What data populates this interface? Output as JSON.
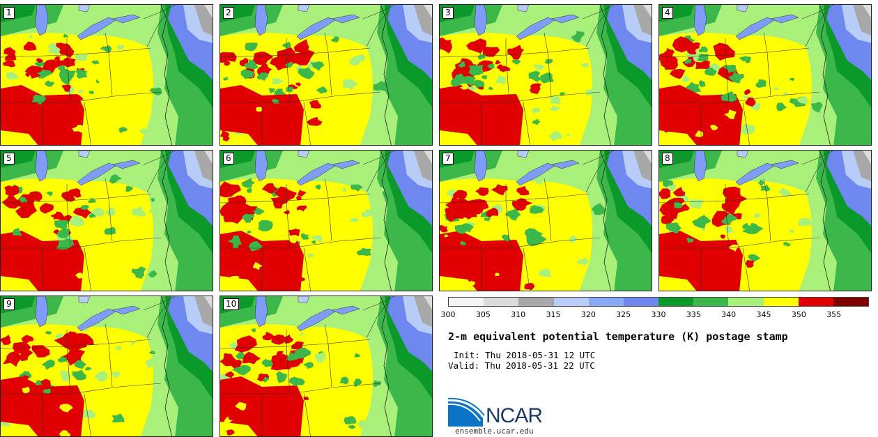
{
  "panels": [
    {
      "label": "1"
    },
    {
      "label": "2"
    },
    {
      "label": "3"
    },
    {
      "label": "4"
    },
    {
      "label": "5"
    },
    {
      "label": "6"
    },
    {
      "label": "7"
    },
    {
      "label": "8"
    },
    {
      "label": "9"
    },
    {
      "label": "10"
    }
  ],
  "colorbar": {
    "ticks": [
      "300",
      "305",
      "310",
      "315",
      "320",
      "325",
      "330",
      "335",
      "340",
      "345",
      "350",
      "355"
    ],
    "colors": [
      "#f4f4f4",
      "#dcdcdc",
      "#a8a8a8",
      "#b8ccf8",
      "#8aa8f8",
      "#6f88f0",
      "#0b9a2a",
      "#3cb84a",
      "#a8f07a",
      "#ffff00",
      "#e00000",
      "#800000"
    ]
  },
  "title": "2-m equivalent potential temperature (K) postage stamp",
  "init": "Init: Thu 2018-05-31 12 UTC",
  "valid": "Valid: Thu 2018-05-31 22 UTC",
  "logo_text": "NCAR",
  "site": "ensemble.ucar.edu",
  "colors": {
    "lake": "#7f9cf8",
    "ocean_cold": "#6f88f0",
    "ocean_cool": "#b8ccf8",
    "ocean_far": "#a8a8a8",
    "ocean_far_light": "#dcdcdc",
    "dark_green": "#0b9a2a",
    "mid_green": "#3cb84a",
    "light_green": "#a8f07a",
    "yellow": "#ffff00",
    "red": "#e00000"
  }
}
